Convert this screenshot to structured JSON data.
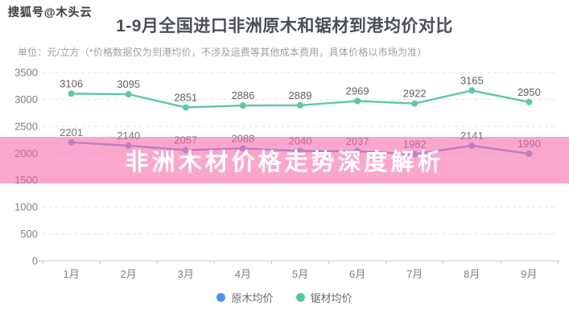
{
  "watermark": "搜狐号@木头云",
  "header": {
    "title": "1-9月全国进口非洲原木和锯材到港均价对比",
    "subtitle": "单位：元/立方（*价格数据仅为到港均价，不涉及运费等其他成本费用，具体价格以市场为准）"
  },
  "banner": {
    "text": "非洲木材价格走势深度解析",
    "overlay_color": "rgba(246,98,167,0.56)",
    "text_color": "#ffffff"
  },
  "chart_data": {
    "type": "line",
    "title": "1-9月全国进口非洲原木和锯材到港均价对比",
    "xlabel": "",
    "ylabel": "元/立方",
    "categories": [
      "1月",
      "2月",
      "3月",
      "4月",
      "5月",
      "6月",
      "7月",
      "8月",
      "9月"
    ],
    "series": [
      {
        "name": "原木均价",
        "values": [
          2201,
          2140,
          2057,
          2088,
          2040,
          2037,
          1982,
          2141,
          1990
        ],
        "color": "#4a96e2",
        "line_color": "#7aa0e4",
        "label_color": "#70757c"
      },
      {
        "name": "锯材均价",
        "values": [
          3106,
          3095,
          2851,
          2886,
          2889,
          2969,
          2922,
          3165,
          2950
        ],
        "color": "#52c9a2",
        "line_color": "#5ec8a4",
        "label_color": "#5c6066"
      }
    ],
    "ylim": [
      0,
      3500
    ],
    "ytick_step": 500,
    "grid": "horizontal-dashed",
    "legend_position": "bottom",
    "axis_color": "#c9c9c9",
    "grid_color": "#e4e4e4",
    "tick_label_color": "#808080"
  }
}
